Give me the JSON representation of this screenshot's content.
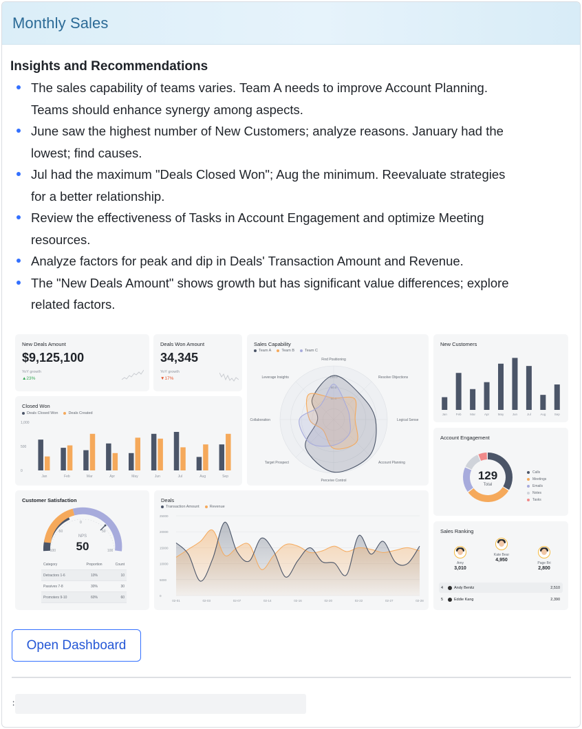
{
  "header": {
    "title": "Monthly Sales"
  },
  "insights": {
    "heading": "Insights and Recommendations",
    "items": [
      {
        "line1": "The sales capability of teams varies. Team A needs to improve Account Planning.",
        "line2": "Teams should enhance synergy among aspects."
      },
      {
        "line1": "June saw the highest number of New Customers; analyze reasons. January had the",
        "line2": "lowest; find causes."
      },
      {
        "line1": "Jul had the maximum \"Deals Closed Won\"; Aug the minimum. Reevaluate strategies",
        "line2": "for a better relationship."
      },
      {
        "line1": "Review the effectiveness of Tasks in Account Engagement and optimize Meeting",
        "line2": "resources."
      },
      {
        "line1": "Analyze factors for peak and dip in Deals' Transaction Amount and Revenue.",
        "line2": ""
      },
      {
        "line1": "The \"New Deals Amount\" shows growth but has significant value differences; explore",
        "line2": "related factors."
      }
    ]
  },
  "dashboard": {
    "new_deals": {
      "title": "New Deals Amount",
      "value": "$9,125,100",
      "sub": "YoY growth",
      "change": "▲23%"
    },
    "deals_won": {
      "title": "Deals Won Amount",
      "value": "34,345",
      "sub": "YoY growth",
      "change": "▼17%"
    },
    "closed_won": {
      "title": "Closed Won",
      "legend": [
        "Deals Closed Won",
        "Deals Created"
      ],
      "y_ticks": [
        "1,000",
        "500",
        "0"
      ],
      "months": [
        "Jan",
        "Feb",
        "Mar",
        "Apr",
        "May",
        "Jun",
        "Jul",
        "Aug",
        "Sep"
      ],
      "won": [
        640,
        470,
        420,
        560,
        360,
        760,
        800,
        280,
        540
      ],
      "created": [
        290,
        520,
        760,
        360,
        680,
        660,
        480,
        540,
        760
      ],
      "max": 1000
    },
    "sales_capability": {
      "title": "Sales Capability",
      "legend": [
        "Team A",
        "Team B",
        "Team C"
      ],
      "axes": [
        "Find Positioning",
        "Resolve Objections",
        "Logical Sense",
        "Account Planning",
        "Perceive Control",
        "Target Prospect",
        "Collaboration",
        "Leverage Insights"
      ],
      "ring_labels": [
        "100.0",
        "80.0",
        "60.0"
      ],
      "series": [
        {
          "name": "Team A",
          "values": [
            82,
            68,
            78,
            95,
            98,
            74,
            30,
            56
          ]
        },
        {
          "name": "Team B",
          "values": [
            40,
            55,
            40,
            60,
            54,
            28,
            45,
            66
          ]
        },
        {
          "name": "Team C",
          "values": [
            66,
            34,
            30,
            40,
            48,
            62,
            64,
            36
          ]
        }
      ]
    },
    "new_customers": {
      "title": "New Customers",
      "months": [
        "Jan",
        "Feb",
        "Mar",
        "Apr",
        "May",
        "Jun",
        "Jul",
        "Aug",
        "Sep"
      ],
      "values": [
        22,
        64,
        36,
        48,
        80,
        90,
        76,
        26,
        44
      ],
      "max": 100
    },
    "account_engagement": {
      "title": "Account Engagement",
      "total": "129",
      "total_label": "Total",
      "segments": [
        {
          "name": "Calls",
          "value": 44
        },
        {
          "name": "Meetings",
          "value": 40
        },
        {
          "name": "Emails",
          "value": 22
        },
        {
          "name": "Notes",
          "value": 15
        },
        {
          "name": "Tasks",
          "value": 8
        }
      ]
    },
    "customer_satisfaction": {
      "title": "Customer Satisfaction",
      "nps_label": "NPS",
      "nps_value": "50",
      "gauge_ticks": [
        "-100",
        "-50",
        "0",
        "50",
        "100"
      ],
      "table_headers": [
        "Category",
        "Proportion",
        "Count"
      ],
      "rows": [
        [
          "Detractors 1-6",
          "10%",
          "10"
        ],
        [
          "Passives 7-8",
          "30%",
          "30"
        ],
        [
          "Promoters 9-10",
          "60%",
          "60"
        ]
      ]
    },
    "deals": {
      "title": "Deals",
      "legend": [
        "Transaction Amount",
        "Revenue"
      ],
      "y_ticks": [
        "25000",
        "20000",
        "15000",
        "10000",
        "5000",
        "0"
      ],
      "x_ticks": [
        "02-01",
        "02-03",
        "02-07",
        "02-14",
        "02-16",
        "02-20",
        "02-22",
        "02-27",
        "02-28"
      ],
      "transaction": [
        12000,
        14500,
        17000,
        20500,
        12600,
        15000,
        16000,
        8200,
        12500,
        16000,
        15500,
        13500,
        14000,
        15500,
        13800,
        15000,
        14500,
        13500,
        14200,
        15000,
        14000
      ],
      "revenue": [
        16500,
        13000,
        4500,
        11500,
        23000,
        13800,
        10800,
        18000,
        14000,
        5800,
        11000,
        15000,
        10600,
        10200,
        6500,
        18800,
        13000,
        17000,
        10500,
        10000,
        15500
      ],
      "max": 25000
    },
    "sales_ranking": {
      "title": "Sales Ranking",
      "top": [
        {
          "name": "Amy",
          "value": "3,010"
        },
        {
          "name": "Kate Bear",
          "value": "4,950"
        },
        {
          "name": "Page Bri",
          "value": "2,800"
        }
      ],
      "rows": [
        {
          "rank": "4",
          "name": "Andy Benitz",
          "value": "2,510"
        },
        {
          "rank": "5",
          "name": "Eddie Kang",
          "value": "2,390"
        }
      ]
    }
  },
  "open_button": {
    "label": "Open Dashboard"
  },
  "input": {
    "caret": ":"
  },
  "colors": {
    "dark_bar": "#4b5568",
    "orange": "#f5a95b",
    "lavender": "#a7abdc",
    "accent": "#3370ff"
  }
}
